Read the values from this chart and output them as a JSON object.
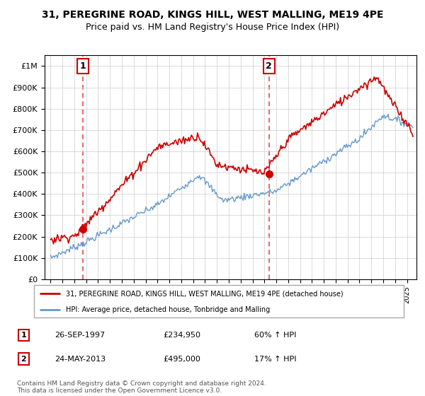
{
  "title": "31, PEREGRINE ROAD, KINGS HILL, WEST MALLING, ME19 4PE",
  "subtitle": "Price paid vs. HM Land Registry's House Price Index (HPI)",
  "background_color": "#ffffff",
  "grid_color": "#cccccc",
  "hpi_color": "#6699cc",
  "price_color": "#cc0000",
  "sale1_year": 1997.73,
  "sale1_price": 234950,
  "sale2_year": 2013.38,
  "sale2_price": 495000,
  "sale1_label": "1",
  "sale2_label": "2",
  "legend_line1": "31, PEREGRINE ROAD, KINGS HILL, WEST MALLING, ME19 4PE (detached house)",
  "legend_line2": "HPI: Average price, detached house, Tonbridge and Malling",
  "table_row1": [
    "1",
    "26-SEP-1997",
    "£234,950",
    "60% ↑ HPI"
  ],
  "table_row2": [
    "2",
    "24-MAY-2013",
    "£495,000",
    "17% ↑ HPI"
  ],
  "footer": "Contains HM Land Registry data © Crown copyright and database right 2024.\nThis data is licensed under the Open Government Licence v3.0.",
  "ylim": [
    0,
    1050000
  ],
  "yticks": [
    0,
    100000,
    200000,
    300000,
    400000,
    500000,
    600000,
    700000,
    800000,
    900000,
    1000000
  ]
}
